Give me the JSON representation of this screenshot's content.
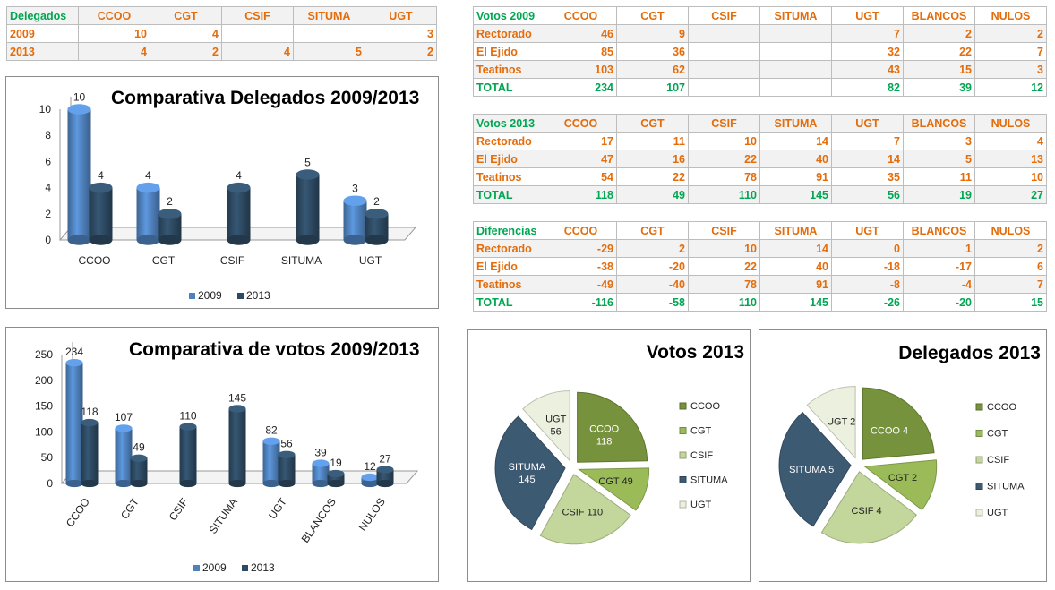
{
  "delegados_table": {
    "headers": [
      "Delegados",
      "CCOO",
      "CGT",
      "CSIF",
      "SITUMA",
      "UGT"
    ],
    "rows": [
      [
        "2009",
        "10",
        "4",
        "",
        "",
        "3"
      ],
      [
        "2013",
        "4",
        "2",
        "4",
        "5",
        "2"
      ]
    ]
  },
  "votos2009_table": {
    "headers": [
      "Votos 2009",
      "CCOO",
      "CGT",
      "CSIF",
      "SITUMA",
      "UGT",
      "BLANCOS",
      "NULOS"
    ],
    "rows": [
      [
        "Rectorado",
        "46",
        "9",
        "",
        "",
        "7",
        "2",
        "2"
      ],
      [
        "El Ejido",
        "85",
        "36",
        "",
        "",
        "32",
        "22",
        "7"
      ],
      [
        "Teatinos",
        "103",
        "62",
        "",
        "",
        "43",
        "15",
        "3"
      ],
      [
        "TOTAL",
        "234",
        "107",
        "",
        "",
        "82",
        "39",
        "12"
      ]
    ]
  },
  "votos2013_table": {
    "headers": [
      "Votos 2013",
      "CCOO",
      "CGT",
      "CSIF",
      "SITUMA",
      "UGT",
      "BLANCOS",
      "NULOS"
    ],
    "rows": [
      [
        "Rectorado",
        "17",
        "11",
        "10",
        "14",
        "7",
        "3",
        "4"
      ],
      [
        "El Ejido",
        "47",
        "16",
        "22",
        "40",
        "14",
        "5",
        "13"
      ],
      [
        "Teatinos",
        "54",
        "22",
        "78",
        "91",
        "35",
        "11",
        "10"
      ],
      [
        "TOTAL",
        "118",
        "49",
        "110",
        "145",
        "56",
        "19",
        "27"
      ]
    ]
  },
  "diferencias_table": {
    "headers": [
      "Diferencias",
      "CCOO",
      "CGT",
      "CSIF",
      "SITUMA",
      "UGT",
      "BLANCOS",
      "NULOS"
    ],
    "rows": [
      [
        "Rectorado",
        "-29",
        "2",
        "10",
        "14",
        "0",
        "1",
        "2"
      ],
      [
        "El Ejido",
        "-38",
        "-20",
        "22",
        "40",
        "-18",
        "-17",
        "6"
      ],
      [
        "Teatinos",
        "-49",
        "-40",
        "78",
        "91",
        "-8",
        "-4",
        "7"
      ],
      [
        "TOTAL",
        "-116",
        "-58",
        "110",
        "145",
        "-26",
        "-20",
        "15"
      ]
    ]
  },
  "colors": {
    "orange": "#e46c0a",
    "green": "#00a651",
    "series_2009": "#4f81bd",
    "series_2013": "#2e4a62",
    "pie": [
      "#76923c",
      "#9bbb59",
      "#c3d69b",
      "#3d5a73",
      "#ebf1de"
    ]
  },
  "chart_data": [
    {
      "type": "bar",
      "title": "Comparativa Delegados 2009/2013",
      "categories": [
        "CCOO",
        "CGT",
        "CSIF",
        "SITUMA",
        "UGT"
      ],
      "series": [
        {
          "name": "2009",
          "values": [
            10,
            4,
            null,
            null,
            3
          ]
        },
        {
          "name": "2013",
          "values": [
            4,
            2,
            4,
            5,
            2
          ]
        }
      ],
      "ylim": [
        0,
        10
      ],
      "yticks": [
        0,
        2,
        4,
        6,
        8,
        10
      ],
      "legend": "bottom",
      "grid": false
    },
    {
      "type": "bar",
      "title": "Comparativa de votos 2009/2013",
      "categories": [
        "CCOO",
        "CGT",
        "CSIF",
        "SITUMA",
        "UGT",
        "BLANCOS",
        "NULOS"
      ],
      "series": [
        {
          "name": "2009",
          "values": [
            234,
            107,
            null,
            null,
            82,
            39,
            12
          ]
        },
        {
          "name": "2013",
          "values": [
            118,
            49,
            110,
            145,
            56,
            19,
            27
          ]
        }
      ],
      "ylim": [
        0,
        250
      ],
      "yticks": [
        0,
        50,
        100,
        150,
        200,
        250
      ],
      "legend": "bottom",
      "grid": false
    },
    {
      "type": "pie",
      "title": "Votos 2013",
      "labels": [
        "CCOO",
        "CGT",
        "CSIF",
        "SITUMA",
        "UGT"
      ],
      "values": [
        118,
        49,
        110,
        145,
        56
      ],
      "legend": "right"
    },
    {
      "type": "pie",
      "title": "Delegados 2013",
      "labels": [
        "CCOO",
        "CGT",
        "CSIF",
        "SITUMA",
        "UGT"
      ],
      "values": [
        4,
        2,
        4,
        5,
        2
      ],
      "legend": "right"
    }
  ]
}
